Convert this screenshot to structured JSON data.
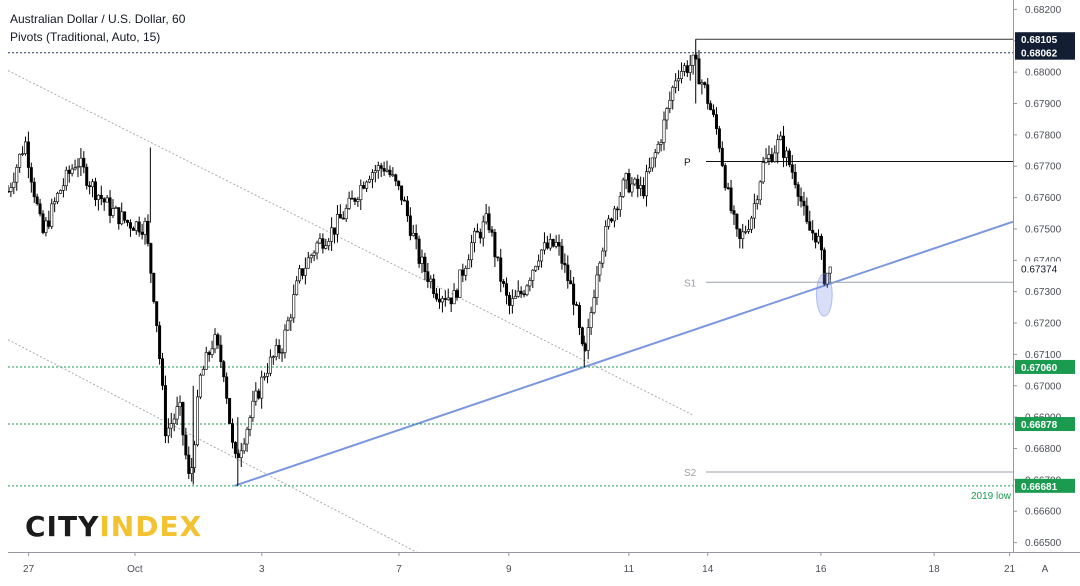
{
  "chart_data": {
    "type": "candlestick",
    "title": "Australian Dollar / U.S. Dollar, 60",
    "subtitle": "Pivots (Traditional, Auto, 15)",
    "watermark": "CITYINDEX",
    "watermark_parts": [
      "CITY",
      "INDEX"
    ],
    "y_ticks": [
      0.665,
      0.666,
      0.667,
      0.668,
      0.669,
      0.67,
      0.671,
      0.672,
      0.673,
      0.674,
      0.675,
      0.676,
      0.677,
      0.678,
      0.679,
      0.68,
      0.681,
      0.682
    ],
    "y_tick_labels": [
      "0.66500",
      "0.66600",
      "0.66700",
      "0.66800",
      "0.66900",
      "0.67000",
      "0.67100",
      "0.67200",
      "0.67300",
      "0.67400",
      "0.67500",
      "0.67600",
      "0.67700",
      "0.67800",
      "0.67900",
      "0.68000",
      "0.68100",
      "0.68200"
    ],
    "ylim": [
      0.6647,
      0.6823
    ],
    "x_labels": [
      {
        "text": "27",
        "x": 0.6
      },
      {
        "text": "Oct",
        "x": 3.7
      },
      {
        "text": "3",
        "x": 7.4
      },
      {
        "text": "7",
        "x": 11.4
      },
      {
        "text": "9",
        "x": 14.6
      },
      {
        "text": "11",
        "x": 18.1
      },
      {
        "text": "14",
        "x": 20.4
      },
      {
        "text": "16",
        "x": 23.7
      },
      {
        "text": "18",
        "x": 27.0
      },
      {
        "text": "21",
        "x": 29.2
      }
    ],
    "xlim": [
      0,
      29.3
    ],
    "price_labels": [
      {
        "value": 0.68105,
        "text": "0.68105",
        "style": "dark"
      },
      {
        "value": 0.68062,
        "text": "0.68062",
        "style": "dark"
      },
      {
        "value": 0.67374,
        "text": "0.67374",
        "style": "plain"
      },
      {
        "value": 0.6706,
        "text": "0.67060",
        "style": "green"
      },
      {
        "value": 0.66878,
        "text": "0.66878",
        "style": "green"
      },
      {
        "value": 0.66681,
        "text": "0.66681",
        "style": "green"
      }
    ],
    "horizontal_levels": [
      {
        "value": 0.68062,
        "style": "dotted"
      },
      {
        "value": 0.6706,
        "style": "dotted"
      },
      {
        "value": 0.66878,
        "style": "dotted"
      },
      {
        "value": 0.66681,
        "style": "dotted"
      }
    ],
    "pivots": [
      {
        "label": "P",
        "value": 0.67715,
        "x_start": 20.0
      },
      {
        "label": "S1",
        "value": 0.6733,
        "x_start": 20.0
      },
      {
        "label": "S2",
        "value": 0.66725,
        "x_start": 20.0
      }
    ],
    "annotations": [
      {
        "text": "2019 low",
        "value": 0.66681
      }
    ],
    "trendlines": [
      {
        "style": "solid-blue",
        "points": [
          [
            6.6,
            0.66681
          ],
          [
            16.8,
            0.6706
          ],
          [
            29.3,
            0.67523
          ]
        ]
      },
      {
        "style": "dotted-grey",
        "points": [
          [
            0.0,
            0.68005
          ],
          [
            20.0,
            0.66905
          ]
        ]
      },
      {
        "style": "dotted-grey",
        "points": [
          [
            0.0,
            0.67147
          ],
          [
            12.6,
            0.6643
          ]
        ]
      }
    ],
    "highlight_ellipse": {
      "x": 23.8,
      "y": 0.6729,
      "rx_days": 0.23,
      "ry": 0.00068
    },
    "series": [
      {
        "name": "AUDUSD",
        "points": [
          [
            0.0,
            0.6762
          ],
          [
            0.5,
            0.6778
          ],
          [
            1.0,
            0.6748
          ],
          [
            1.5,
            0.6762
          ],
          [
            2.0,
            0.6772
          ],
          [
            2.5,
            0.6763
          ],
          [
            3.0,
            0.6756
          ],
          [
            3.5,
            0.6752
          ],
          [
            4.0,
            0.6751
          ],
          [
            4.3,
            0.6725
          ],
          [
            4.6,
            0.6685
          ],
          [
            5.0,
            0.6693
          ],
          [
            5.3,
            0.6668
          ],
          [
            5.6,
            0.6702
          ],
          [
            6.0,
            0.6715
          ],
          [
            6.3,
            0.6705
          ],
          [
            6.6,
            0.6675
          ],
          [
            7.0,
            0.6688
          ],
          [
            7.5,
            0.6705
          ],
          [
            8.0,
            0.6713
          ],
          [
            8.5,
            0.6735
          ],
          [
            9.0,
            0.6745
          ],
          [
            9.5,
            0.675
          ],
          [
            10.0,
            0.6758
          ],
          [
            10.5,
            0.6768
          ],
          [
            11.0,
            0.677
          ],
          [
            11.5,
            0.676
          ],
          [
            12.0,
            0.674
          ],
          [
            12.5,
            0.673
          ],
          [
            13.0,
            0.6728
          ],
          [
            13.5,
            0.6745
          ],
          [
            14.0,
            0.6753
          ],
          [
            14.3,
            0.6737
          ],
          [
            14.6,
            0.6725
          ],
          [
            15.0,
            0.673
          ],
          [
            15.5,
            0.6743
          ],
          [
            16.0,
            0.6745
          ],
          [
            16.5,
            0.6728
          ],
          [
            16.8,
            0.6707
          ],
          [
            17.2,
            0.674
          ],
          [
            17.6,
            0.6755
          ],
          [
            18.0,
            0.6765
          ],
          [
            18.5,
            0.6762
          ],
          [
            19.0,
            0.6778
          ],
          [
            19.5,
            0.68
          ],
          [
            20.0,
            0.6803
          ],
          [
            20.3,
            0.6795
          ],
          [
            20.7,
            0.678
          ],
          [
            21.0,
            0.676
          ],
          [
            21.3,
            0.6745
          ],
          [
            21.7,
            0.6755
          ],
          [
            22.0,
            0.677
          ],
          [
            22.5,
            0.6778
          ],
          [
            23.0,
            0.6765
          ],
          [
            23.3,
            0.675
          ],
          [
            23.6,
            0.6748
          ],
          [
            23.8,
            0.6735
          ],
          [
            24.0,
            0.6737
          ]
        ]
      }
    ]
  }
}
